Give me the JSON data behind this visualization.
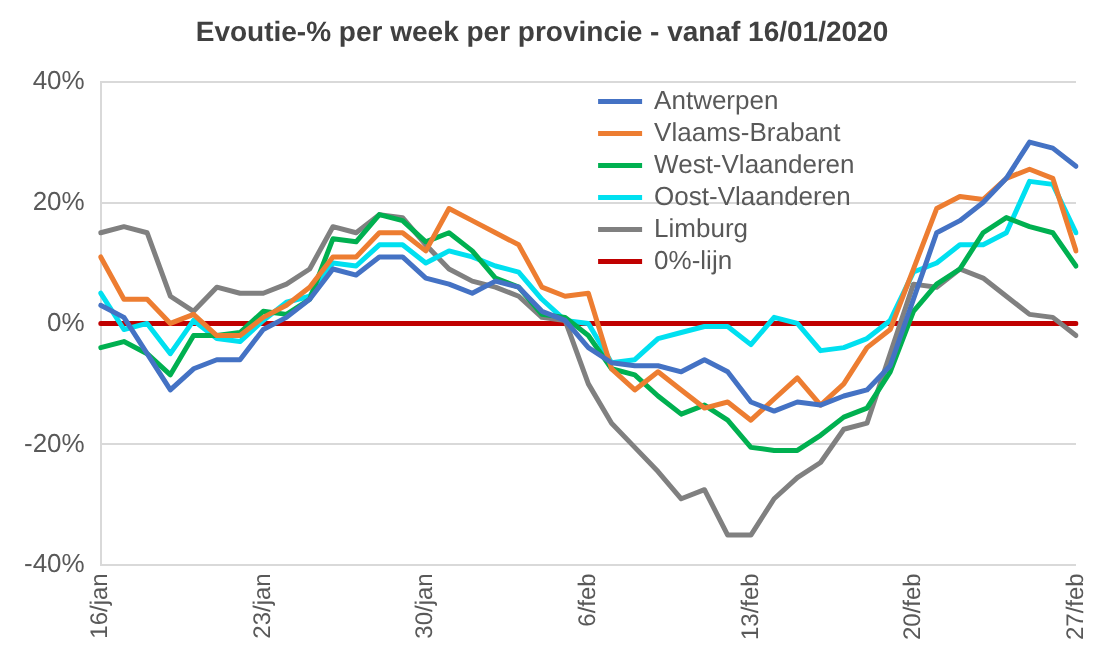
{
  "chart_data": {
    "type": "line",
    "title": "Evoutie-% per week per provincie - vanaf 16/01/2020",
    "categories": [
      "16/jan",
      null,
      null,
      null,
      null,
      null,
      null,
      "23/jan",
      null,
      null,
      null,
      null,
      null,
      null,
      "30/jan",
      null,
      null,
      null,
      null,
      null,
      null,
      "6/feb",
      null,
      null,
      null,
      null,
      null,
      null,
      "13/feb",
      null,
      null,
      null,
      null,
      null,
      null,
      "20/feb",
      null,
      null,
      null,
      null,
      null,
      null,
      "27/feb"
    ],
    "series": [
      {
        "name": "Antwerpen",
        "color": "#4472c4",
        "values": [
          3,
          1,
          -5,
          -11,
          -7.5,
          -6,
          -6,
          -1,
          1,
          4,
          9,
          8,
          11,
          11,
          7.5,
          6.5,
          5,
          7,
          6,
          2,
          0.5,
          -4,
          -6.5,
          -7,
          -7,
          -8,
          -6,
          -8,
          -13,
          -14.5,
          -13,
          -13.5,
          -12,
          -11,
          -7,
          4,
          15,
          17,
          20,
          24,
          30,
          29,
          26
        ]
      },
      {
        "name": "Vlaams-Brabant",
        "color": "#ed7d31",
        "values": [
          11,
          4,
          4,
          0,
          1.5,
          -2,
          -2,
          1,
          3,
          6,
          11,
          11,
          15,
          15,
          12,
          19,
          17,
          15,
          13,
          6,
          4.5,
          5,
          -7.5,
          -11,
          -8,
          -11,
          -14,
          -13,
          -16,
          -12.5,
          -9,
          -13.5,
          -10,
          -4,
          -1,
          9,
          19,
          21,
          20.5,
          24,
          25.5,
          24,
          12
        ]
      },
      {
        "name": "West-Vlaanderen",
        "color": "#00b050",
        "values": [
          -4,
          -3,
          -5,
          -8.5,
          -2,
          -2,
          -1.5,
          2,
          1.5,
          4,
          14,
          13.5,
          18,
          17,
          13.5,
          15,
          12,
          7.5,
          6,
          1.5,
          1,
          -2,
          -7.5,
          -8.5,
          -12,
          -15,
          -13.5,
          -16,
          -20.5,
          -21,
          -21,
          -18.5,
          -15.5,
          -14,
          -8,
          2,
          6.5,
          9,
          15,
          17.5,
          16,
          15,
          9.5
        ]
      },
      {
        "name": "Oost-Vlaanderen",
        "color": "#00e0f0",
        "values": [
          5,
          -1,
          0,
          -5,
          0.5,
          -2.5,
          -3,
          0.5,
          3.5,
          4.5,
          10,
          9.5,
          13,
          13,
          10,
          12,
          11,
          9.5,
          8.5,
          4,
          0.5,
          0,
          -6.5,
          -6,
          -2.5,
          -1.5,
          -0.5,
          -0.5,
          -3.5,
          1,
          0,
          -4.5,
          -4,
          -2.5,
          0.5,
          8.5,
          10,
          13,
          13,
          15,
          23.5,
          23,
          15
        ]
      },
      {
        "name": "Limburg",
        "color": "#808080",
        "values": [
          15,
          16,
          15,
          4.5,
          2,
          6,
          5,
          5,
          6.5,
          9,
          16,
          15,
          18,
          17.5,
          13,
          9,
          7,
          6,
          4.5,
          1,
          0.5,
          -10,
          -16.5,
          -20.5,
          -24.5,
          -29,
          -27.5,
          -35,
          -35,
          -29,
          -25.5,
          -23,
          -17.5,
          -16.5,
          -5,
          6.5,
          6,
          9,
          7.5,
          4.5,
          1.5,
          1,
          -2
        ]
      },
      {
        "name": "0%-lijn",
        "color": "#c00000",
        "values": [
          0,
          0,
          0,
          0,
          0,
          0,
          0,
          0,
          0,
          0,
          0,
          0,
          0,
          0,
          0,
          0,
          0,
          0,
          0,
          0,
          0,
          0,
          0,
          0,
          0,
          0,
          0,
          0,
          0,
          0,
          0,
          0,
          0,
          0,
          0,
          0,
          0,
          0,
          0,
          0,
          0,
          0,
          0
        ]
      }
    ],
    "ylim": [
      -40,
      40
    ],
    "yticks": [
      {
        "value": -40,
        "label": "-40%"
      },
      {
        "value": -20,
        "label": "-20%"
      },
      {
        "value": 0,
        "label": "0%"
      },
      {
        "value": 20,
        "label": "20%"
      },
      {
        "value": 40,
        "label": "40%"
      }
    ],
    "grid": "y",
    "legend": "top right",
    "marker": "none",
    "line_style": "solid"
  }
}
